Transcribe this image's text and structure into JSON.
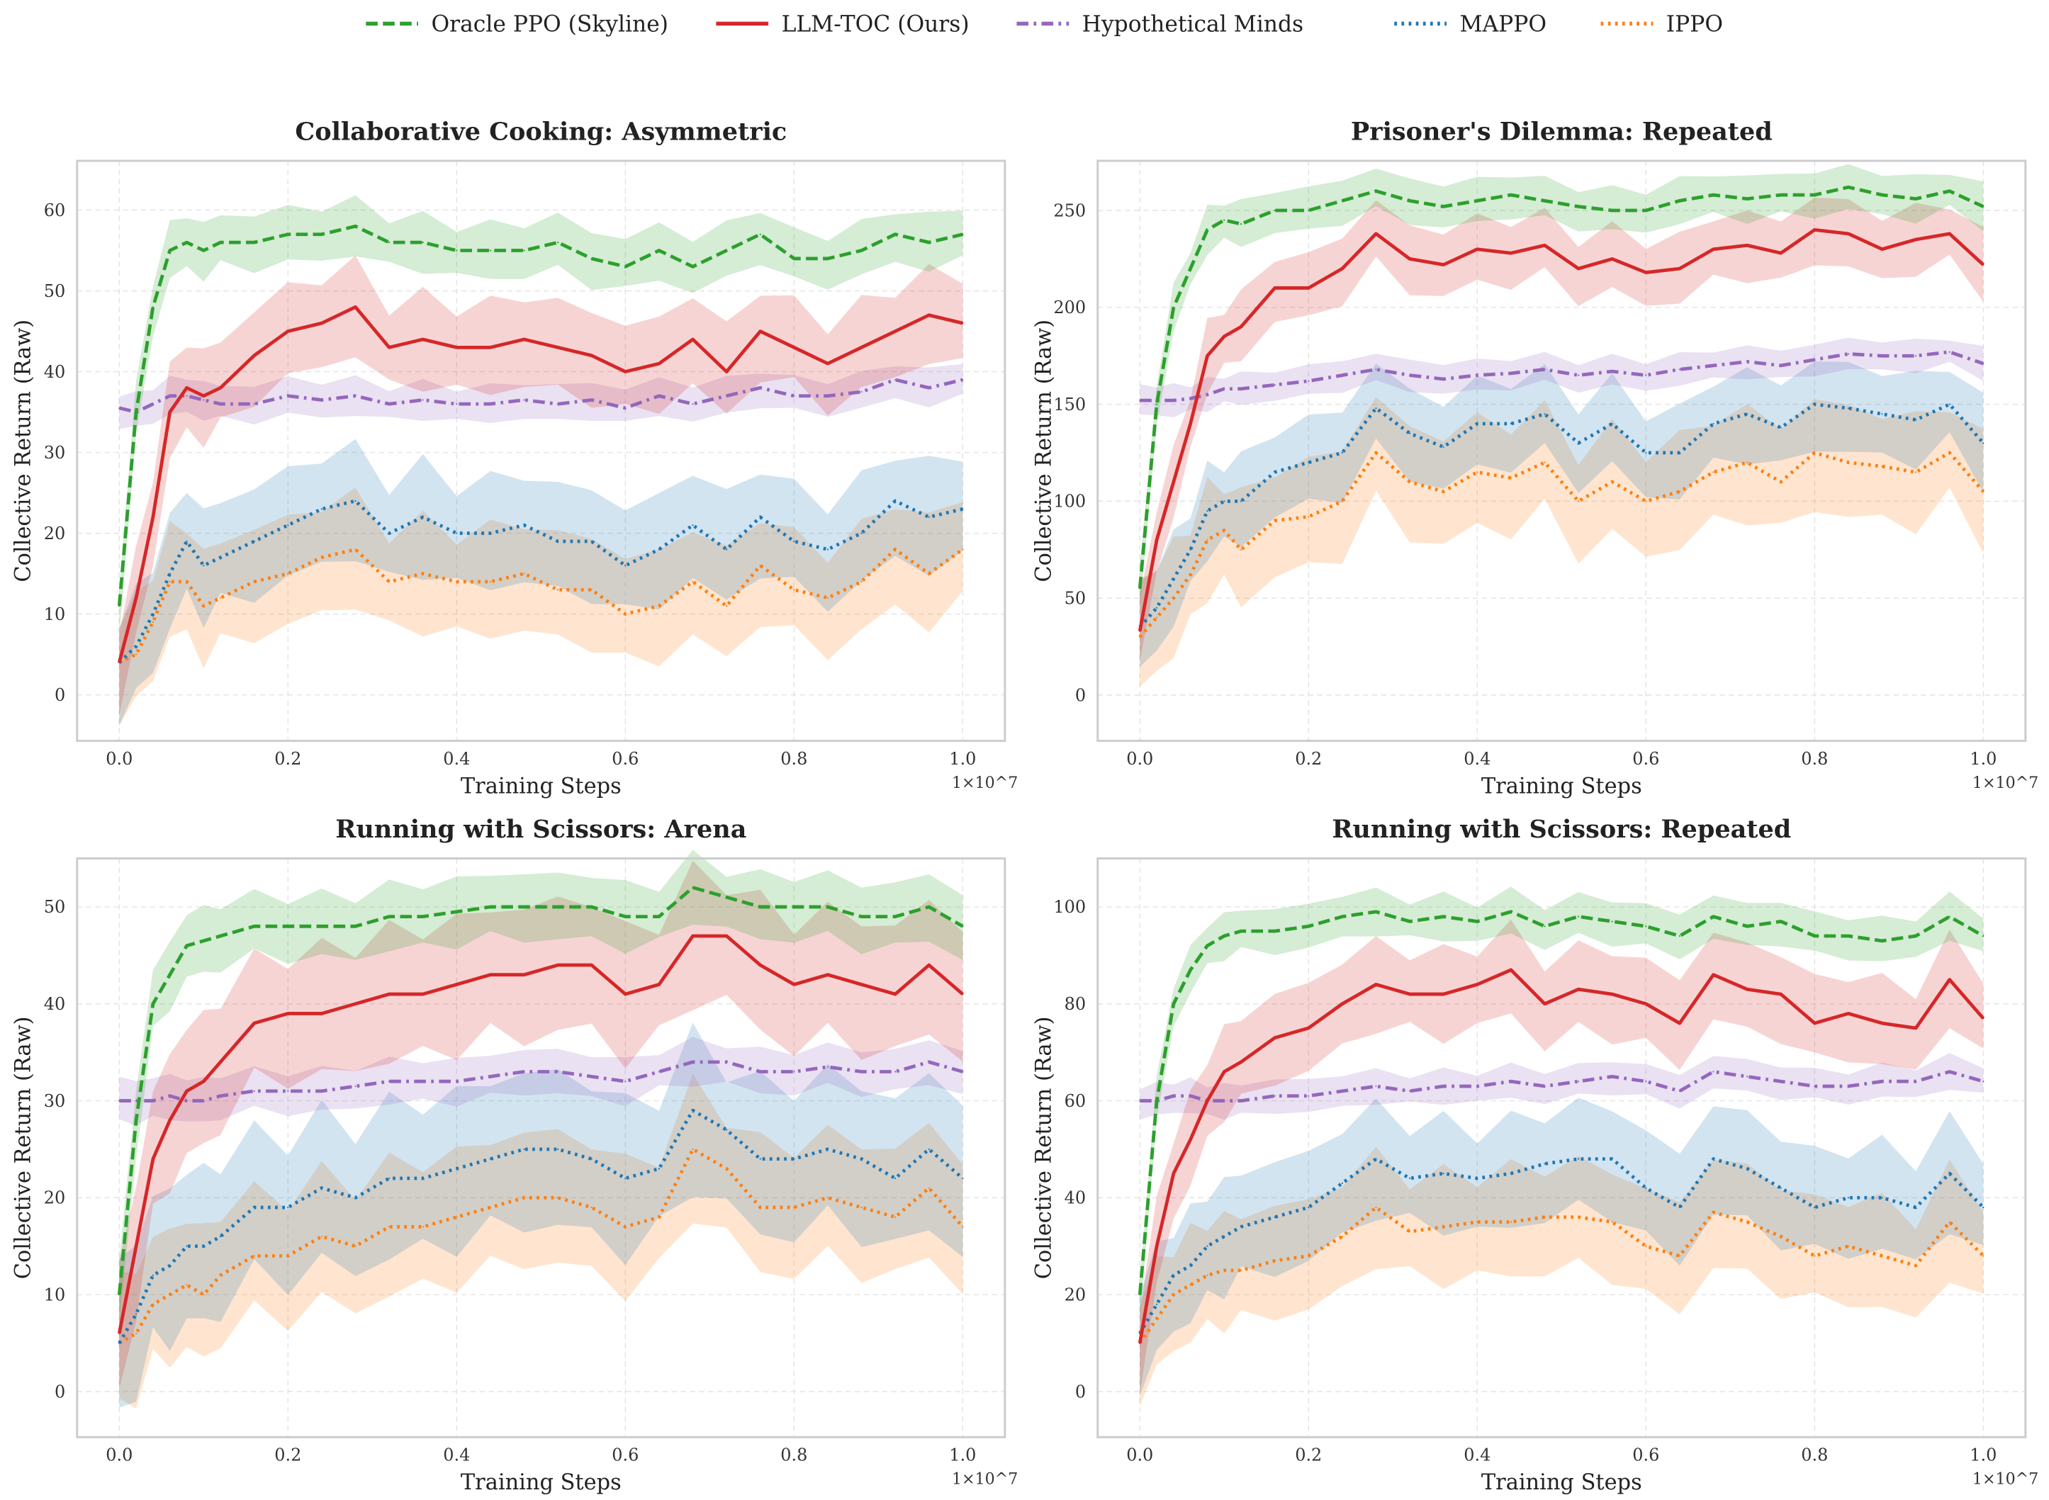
{
  "legend": {
    "position": "top-center",
    "entries": [
      {
        "key": "oracle",
        "label": "Oracle PPO (Skyline)",
        "color": "#2ca02c",
        "style": "dashed"
      },
      {
        "key": "llm",
        "label": "LLM-TOC (Ours)",
        "color": "#d62728",
        "style": "solid"
      },
      {
        "key": "hm",
        "label": "Hypothetical Minds",
        "color": "#9467bd",
        "style": "dashdot"
      },
      {
        "key": "mappo",
        "label": "MAPPO",
        "color": "#1f77b4",
        "style": "dotted"
      },
      {
        "key": "ippo",
        "label": "IPPO",
        "color": "#ff7f0e",
        "style": "dotted"
      }
    ]
  },
  "chart_data": [
    {
      "type": "line",
      "title": "Collaborative Cooking: Asymmetric",
      "xlabel": "Training Steps",
      "ylabel": "Collective Return (Raw)",
      "x_offset_label": "1×10^7",
      "xlim": [
        -0.05,
        1.05
      ],
      "ylim": [
        -5.7,
        66.1
      ],
      "grid": true,
      "xticks": [
        "0.0",
        "0.2",
        "0.4",
        "0.6",
        "0.8",
        "1.0"
      ],
      "yticks": [
        "0",
        "10",
        "20",
        "30",
        "40",
        "50",
        "60"
      ],
      "x": [
        0,
        0.02,
        0.04,
        0.06,
        0.08,
        0.1,
        0.12,
        0.16,
        0.2,
        0.24,
        0.28,
        0.32,
        0.36,
        0.4,
        0.44,
        0.48,
        0.52,
        0.56,
        0.6,
        0.64,
        0.68,
        0.72,
        0.76,
        0.8,
        0.84,
        0.88,
        0.92,
        0.96,
        1.0
      ],
      "series": [
        {
          "key": "oracle",
          "band": 3,
          "values": [
            11,
            35,
            48,
            55,
            56,
            55,
            56,
            56,
            57,
            57,
            58,
            56,
            56,
            55,
            55,
            55,
            56,
            54,
            53,
            55,
            53,
            55,
            57,
            54,
            54,
            55,
            57,
            56,
            57
          ]
        },
        {
          "key": "llm",
          "band": 5,
          "values": [
            4,
            12,
            22,
            35,
            38,
            37,
            38,
            42,
            45,
            46,
            48,
            43,
            44,
            43,
            43,
            44,
            43,
            42,
            40,
            41,
            44,
            40,
            45,
            43,
            41,
            43,
            45,
            47,
            46
          ]
        },
        {
          "key": "hm",
          "band": 2,
          "values": [
            35.5,
            35,
            36,
            37,
            37,
            36.5,
            36,
            36,
            37,
            36.5,
            37,
            36,
            36.5,
            36,
            36,
            36.5,
            36,
            36.5,
            35.5,
            37,
            36,
            37,
            38,
            37,
            37,
            37.5,
            39,
            38,
            39
          ]
        },
        {
          "key": "mappo",
          "band": 6,
          "values": [
            4,
            6,
            10,
            15,
            19,
            16,
            17,
            19,
            21,
            23,
            24,
            20,
            22,
            20,
            20,
            21,
            19,
            19,
            16,
            18,
            21,
            18,
            22,
            19,
            18,
            20,
            24,
            22,
            23
          ]
        },
        {
          "key": "ippo",
          "band": 6,
          "values": [
            4,
            5,
            9,
            14,
            14,
            11,
            12,
            14,
            15,
            17,
            18,
            14,
            15,
            14,
            14,
            15,
            13,
            13,
            10,
            11,
            14,
            11,
            16,
            13,
            12,
            14,
            18,
            15,
            18
          ]
        }
      ]
    },
    {
      "type": "line",
      "title": "Prisoner's Dilemma: Repeated",
      "xlabel": "Training Steps",
      "ylabel": "Collective Return (Raw)",
      "x_offset_label": "1×10^7",
      "xlim": [
        -0.05,
        1.05
      ],
      "ylim": [
        -23.6,
        275.6
      ],
      "grid": true,
      "xticks": [
        "0.0",
        "0.2",
        "0.4",
        "0.6",
        "0.8",
        "1.0"
      ],
      "yticks": [
        "0",
        "50",
        "100",
        "150",
        "200",
        "250"
      ],
      "x": [
        0,
        0.02,
        0.04,
        0.06,
        0.08,
        0.1,
        0.12,
        0.16,
        0.2,
        0.24,
        0.28,
        0.32,
        0.36,
        0.4,
        0.44,
        0.48,
        0.52,
        0.56,
        0.6,
        0.64,
        0.68,
        0.72,
        0.76,
        0.8,
        0.84,
        0.88,
        0.92,
        0.96,
        1.0
      ],
      "series": [
        {
          "key": "oracle",
          "band": 10,
          "values": [
            55,
            150,
            200,
            220,
            240,
            245,
            243,
            250,
            250,
            255,
            260,
            255,
            252,
            255,
            258,
            255,
            252,
            250,
            250,
            255,
            258,
            256,
            258,
            258,
            262,
            258,
            256,
            260,
            252
          ]
        },
        {
          "key": "llm",
          "band": 15,
          "values": [
            33,
            80,
            110,
            140,
            175,
            185,
            190,
            210,
            210,
            220,
            238,
            225,
            222,
            230,
            228,
            232,
            220,
            225,
            218,
            220,
            230,
            232,
            228,
            240,
            238,
            230,
            235,
            238,
            222
          ]
        },
        {
          "key": "hm",
          "band": 7,
          "values": [
            152,
            152,
            152,
            153,
            155,
            158,
            158,
            160,
            162,
            165,
            168,
            165,
            163,
            165,
            166,
            168,
            165,
            167,
            165,
            168,
            170,
            172,
            170,
            173,
            176,
            175,
            175,
            177,
            171
          ]
        },
        {
          "key": "mappo",
          "band": 20,
          "values": [
            35,
            45,
            60,
            75,
            95,
            100,
            100,
            115,
            120,
            125,
            148,
            135,
            128,
            140,
            140,
            145,
            130,
            140,
            125,
            125,
            140,
            145,
            138,
            150,
            148,
            145,
            142,
            150,
            130
          ]
        },
        {
          "key": "ippo",
          "band": 25,
          "values": [
            30,
            40,
            50,
            62,
            80,
            85,
            75,
            90,
            92,
            100,
            125,
            110,
            105,
            115,
            112,
            120,
            100,
            110,
            100,
            105,
            115,
            120,
            110,
            125,
            120,
            118,
            115,
            125,
            105
          ]
        }
      ]
    },
    {
      "type": "line",
      "title": "Running with Scissors: Arena",
      "xlabel": "Training Steps",
      "ylabel": "Collective Return (Raw)",
      "x_offset_label": "1×10^7",
      "xlim": [
        -0.05,
        1.05
      ],
      "ylim": [
        -4.7,
        55
      ],
      "grid": true,
      "xticks": [
        "0.0",
        "0.2",
        "0.4",
        "0.6",
        "0.8",
        "1.0"
      ],
      "yticks": [
        "0",
        "10",
        "20",
        "30",
        "40",
        "50"
      ],
      "x": [
        0,
        0.02,
        0.04,
        0.06,
        0.08,
        0.1,
        0.12,
        0.16,
        0.2,
        0.24,
        0.28,
        0.32,
        0.36,
        0.4,
        0.44,
        0.48,
        0.52,
        0.56,
        0.6,
        0.64,
        0.68,
        0.72,
        0.76,
        0.8,
        0.84,
        0.88,
        0.92,
        0.96,
        1.0
      ],
      "series": [
        {
          "key": "oracle",
          "band": 3,
          "values": [
            10,
            28,
            40,
            43,
            46,
            46.5,
            47,
            48,
            48,
            48,
            48,
            49,
            49,
            49.5,
            50,
            50,
            50,
            50,
            49,
            49,
            52,
            51,
            50,
            50,
            50,
            49,
            49,
            50,
            48
          ]
        },
        {
          "key": "llm",
          "band": 6,
          "values": [
            6,
            15,
            24,
            28,
            31,
            32,
            34,
            38,
            39,
            39,
            40,
            41,
            41,
            42,
            43,
            43,
            44,
            44,
            41,
            42,
            47,
            47,
            44,
            42,
            43,
            42,
            41,
            44,
            41
          ]
        },
        {
          "key": "hm",
          "band": 2,
          "values": [
            30,
            30,
            30,
            30.5,
            30,
            30,
            30.5,
            31,
            31,
            31,
            31.5,
            32,
            32,
            32,
            32.5,
            33,
            33,
            32.5,
            32,
            33,
            34,
            34,
            33,
            33,
            33.5,
            33,
            33,
            34,
            33
          ]
        },
        {
          "key": "mappo",
          "band": 7,
          "values": [
            5,
            8,
            12,
            13,
            15,
            15,
            16,
            19,
            19,
            21,
            20,
            22,
            22,
            23,
            24,
            25,
            25,
            24,
            22,
            23,
            29,
            27,
            24,
            24,
            25,
            24,
            22,
            25,
            22
          ]
        },
        {
          "key": "ippo",
          "band": 6,
          "values": [
            5,
            6,
            9,
            10,
            11,
            10,
            12,
            14,
            14,
            16,
            15,
            17,
            17,
            18,
            19,
            20,
            20,
            19,
            17,
            18,
            25,
            23,
            19,
            19,
            20,
            19,
            18,
            21,
            17
          ]
        }
      ]
    },
    {
      "type": "line",
      "title": "Running with Scissors: Repeated",
      "xlabel": "Training Steps",
      "ylabel": "Collective Return (Raw)",
      "x_offset_label": "1×10^7",
      "xlim": [
        -0.05,
        1.05
      ],
      "ylim": [
        -9.4,
        110
      ],
      "grid": true,
      "xticks": [
        "0.0",
        "0.2",
        "0.4",
        "0.6",
        "0.8",
        "1.0"
      ],
      "yticks": [
        "0",
        "20",
        "40",
        "60",
        "80",
        "100"
      ],
      "x": [
        0,
        0.02,
        0.04,
        0.06,
        0.08,
        0.1,
        0.12,
        0.16,
        0.2,
        0.24,
        0.28,
        0.32,
        0.36,
        0.4,
        0.44,
        0.48,
        0.52,
        0.56,
        0.6,
        0.64,
        0.68,
        0.72,
        0.76,
        0.8,
        0.84,
        0.88,
        0.92,
        0.96,
        1.0
      ],
      "series": [
        {
          "key": "oracle",
          "band": 4,
          "values": [
            20,
            60,
            80,
            87,
            92,
            94,
            95,
            95,
            96,
            98,
            99,
            97,
            98,
            97,
            99,
            96,
            98,
            97,
            96,
            94,
            98,
            96,
            97,
            94,
            94,
            93,
            94,
            98,
            94
          ]
        },
        {
          "key": "llm",
          "band": 8,
          "values": [
            10,
            30,
            45,
            52,
            60,
            66,
            68,
            73,
            75,
            80,
            84,
            82,
            82,
            84,
            87,
            80,
            83,
            82,
            80,
            76,
            86,
            83,
            82,
            76,
            78,
            76,
            75,
            85,
            77
          ]
        },
        {
          "key": "hm",
          "band": 3,
          "values": [
            60,
            60,
            61,
            61,
            60,
            60,
            60,
            61,
            61,
            62,
            63,
            62,
            63,
            63,
            64,
            63,
            64,
            65,
            64,
            62,
            66,
            65,
            64,
            63,
            63,
            64,
            64,
            66,
            64
          ]
        },
        {
          "key": "mappo",
          "band": 10,
          "values": [
            12,
            18,
            24,
            26,
            30,
            32,
            34,
            36,
            38,
            43,
            48,
            44,
            45,
            44,
            45,
            47,
            48,
            48,
            42,
            38,
            48,
            46,
            42,
            38,
            40,
            40,
            38,
            45,
            38
          ]
        },
        {
          "key": "ippo",
          "band": 10,
          "values": [
            10,
            15,
            20,
            22,
            24,
            25,
            25,
            27,
            28,
            32,
            38,
            33,
            34,
            35,
            35,
            36,
            36,
            35,
            30,
            28,
            37,
            35,
            32,
            28,
            30,
            28,
            26,
            35,
            28
          ]
        }
      ]
    }
  ]
}
